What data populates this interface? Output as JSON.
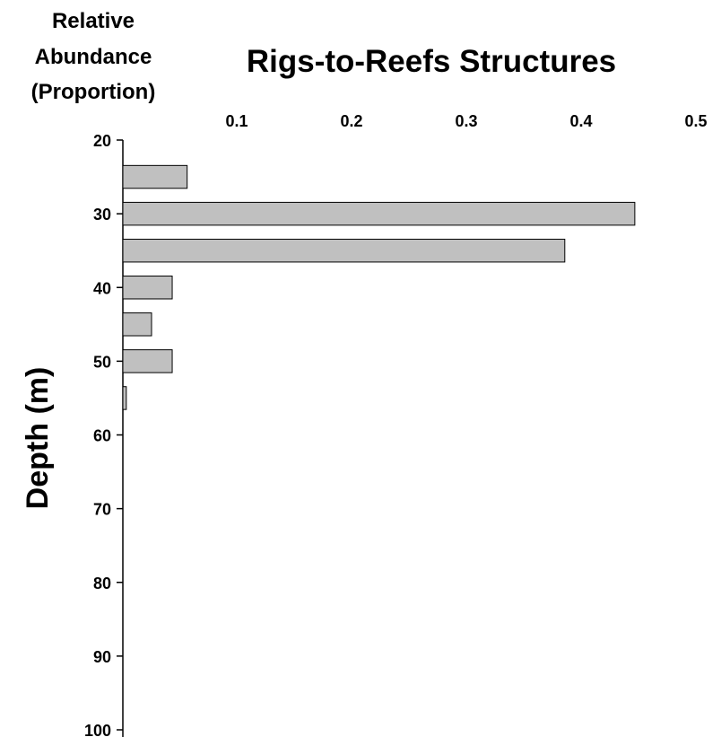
{
  "chart_data": {
    "type": "bar",
    "orientation": "horizontal",
    "title": "Rigs-to-Reefs Structures",
    "xlabel_lines": [
      "Relative",
      "Abundance",
      "(Proportion)"
    ],
    "ylabel": "Depth (m)",
    "xlim": [
      0,
      0.5
    ],
    "x_ticks": [
      "0.1",
      "0.2",
      "0.3",
      "0.4",
      "0.5"
    ],
    "ylim": [
      20,
      100
    ],
    "y_ticks": [
      "20",
      "30",
      "40",
      "50",
      "60",
      "70",
      "80",
      "90",
      "100"
    ],
    "x_axis_position": "top",
    "y_inverted": true,
    "grid": false,
    "bar_color": "#c0c0c0",
    "bar_edge_color": "#000000",
    "categories": [
      25,
      30,
      35,
      40,
      45,
      50,
      55,
      60,
      65,
      70,
      75,
      80,
      85,
      90,
      95
    ],
    "values": [
      0.056,
      0.446,
      0.385,
      0.043,
      0.025,
      0.043,
      0.003,
      0,
      0,
      0,
      0,
      0,
      0,
      0,
      0
    ]
  }
}
